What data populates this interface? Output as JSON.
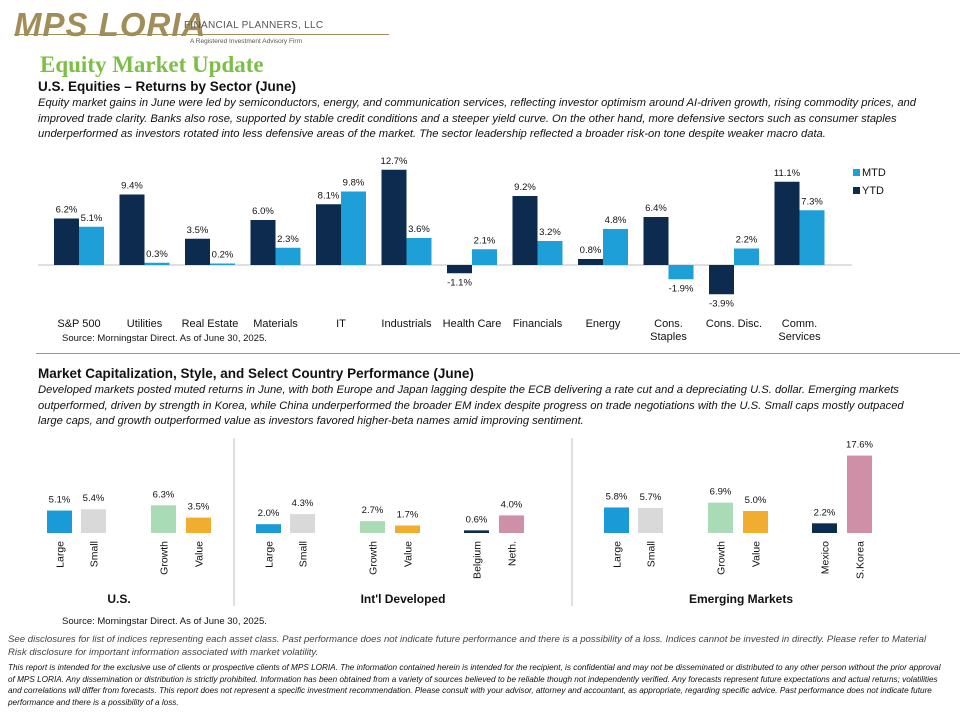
{
  "header": {
    "logo_text": "MPS LORIA",
    "logo_subtitle": "FINANCIAL PLANNERS, LLC",
    "logo_tagline": "A Registered Investment Advisory Firm",
    "title": "Equity Market Update"
  },
  "colors": {
    "mtd": "#1f9fd8",
    "ytd": "#0d2b4e",
    "large": "#1a9ad6",
    "small": "#d9d9d9",
    "growth": "#a9dcb6",
    "value": "#f0ad2f",
    "country_a": "#0d2b4e",
    "country_b": "#cf8fa7",
    "title_green": "#7cbf46"
  },
  "section1": {
    "title": "U.S. Equities – Returns by Sector (June)",
    "text": "Equity market gains in June were led by semiconductors, energy, and communication services, reflecting investor optimism around AI-driven growth, rising commodity prices, and improved trade clarity. Banks also rose, supported by stable credit conditions and a steeper yield curve. On the other hand, more defensive sectors such as consumer staples underperformed as investors rotated into less defensive areas of the market. The sector leadership reflected a broader risk-on tone despite weaker macro data.",
    "source": "Source: Morningstar Direct. As of June 30, 2025."
  },
  "section2": {
    "title": "Market Capitalization, Style, and Select Country Performance (June)",
    "text": "Developed markets posted muted returns in June, with both Europe and Japan lagging despite the ECB delivering a rate cut and a depreciating U.S. dollar. Emerging markets outperformed, driven by strength in Korea, while China underperformed the broader EM index despite progress on trade negotiations with the U.S. Small caps mostly outpaced large caps, and growth outperformed value as investors favored higher-beta names amid improving sentiment.",
    "source": "Source: Morningstar Direct. As of June 30, 2025."
  },
  "chart_data": [
    {
      "type": "bar",
      "categories": [
        "S&P 500",
        "Utilities",
        "Real Estate",
        "Materials",
        "IT",
        "Industrials",
        "Health Care",
        "Financials",
        "Energy",
        "Cons. Staples",
        "Cons. Disc.",
        "Comm. Services"
      ],
      "series": [
        {
          "name": "YTD",
          "values": [
            6.2,
            9.4,
            3.5,
            6.0,
            8.1,
            12.7,
            -1.1,
            9.2,
            0.8,
            6.4,
            -3.9,
            11.1
          ],
          "labels": [
            "6.2%",
            "9.4%",
            "3.5%",
            "6.0%",
            "8.1%",
            "12.7%",
            "-1.1%",
            "9.2%",
            "0.8%",
            "6.4%",
            "-3.9%",
            "11.1%"
          ]
        },
        {
          "name": "MTD",
          "values": [
            5.1,
            0.3,
            0.2,
            2.3,
            9.8,
            3.6,
            2.1,
            3.2,
            4.8,
            -1.9,
            2.2,
            7.3
          ],
          "labels": [
            "5.1%",
            "0.3%",
            "0.2%",
            "2.3%",
            "9.8%",
            "3.6%",
            "2.1%",
            "3.2%",
            "4.8%",
            "-1.9%",
            "2.2%",
            "7.3%"
          ]
        }
      ],
      "legend": [
        "MTD",
        "YTD"
      ],
      "legend_position": "top-right"
    },
    {
      "type": "bar",
      "groups": [
        {
          "name": "U.S.",
          "bars": [
            {
              "label": "Large",
              "value": 5.1,
              "text": "5.1%",
              "color": "large"
            },
            {
              "label": "Small",
              "value": 5.4,
              "text": "5.4%",
              "color": "small"
            },
            {
              "label": "Growth",
              "value": 6.3,
              "text": "6.3%",
              "color": "growth"
            },
            {
              "label": "Value",
              "value": 3.5,
              "text": "3.5%",
              "color": "value"
            }
          ]
        },
        {
          "name": "Int'l Developed",
          "bars": [
            {
              "label": "Large",
              "value": 2.0,
              "text": "2.0%",
              "color": "large"
            },
            {
              "label": "Small",
              "value": 4.3,
              "text": "4.3%",
              "color": "small"
            },
            {
              "label": "Growth",
              "value": 2.7,
              "text": "2.7%",
              "color": "growth"
            },
            {
              "label": "Value",
              "value": 1.7,
              "text": "1.7%",
              "color": "value"
            },
            {
              "label": "Belgium",
              "value": 0.6,
              "text": "0.6%",
              "color": "country_a"
            },
            {
              "label": "Neth.",
              "value": 4.0,
              "text": "4.0%",
              "color": "country_b"
            }
          ]
        },
        {
          "name": "Emerging Markets",
          "bars": [
            {
              "label": "Large",
              "value": 5.8,
              "text": "5.8%",
              "color": "large"
            },
            {
              "label": "Small",
              "value": 5.7,
              "text": "5.7%",
              "color": "small"
            },
            {
              "label": "Growth",
              "value": 6.9,
              "text": "6.9%",
              "color": "growth"
            },
            {
              "label": "Value",
              "value": 5.0,
              "text": "5.0%",
              "color": "value"
            },
            {
              "label": "Mexico",
              "value": 2.2,
              "text": "2.2%",
              "color": "country_a"
            },
            {
              "label": "S.Korea",
              "value": 17.6,
              "text": "17.6%",
              "color": "country_b"
            }
          ]
        }
      ]
    }
  ],
  "disclosures": {
    "short": "See disclosures for list of indices representing each asset class. Past performance does not indicate future performance and there is a possibility of a loss. Indices cannot be invested in directly. Please refer to Material Risk disclosure for important information associated with market volatility.",
    "long": "This report is intended for the exclusive use of clients or prospective clients of MPS LORIA. The information contained herein is intended for the recipient, is confidential and may not be disseminated or distributed to any other person without the prior approval of MPS LORIA. Any dissemination or distribution is strictly prohibited. Information has been obtained from a variety of sources believed to be reliable though not independently verified. Any forecasts represent future expectations and actual returns; volatilities and correlations will differ from forecasts. This report does not represent a specific investment recommendation. Please consult with your advisor, attorney and accountant, as appropriate, regarding specific advice. Past performance does not indicate future performance and there is a possibility of a loss."
  }
}
